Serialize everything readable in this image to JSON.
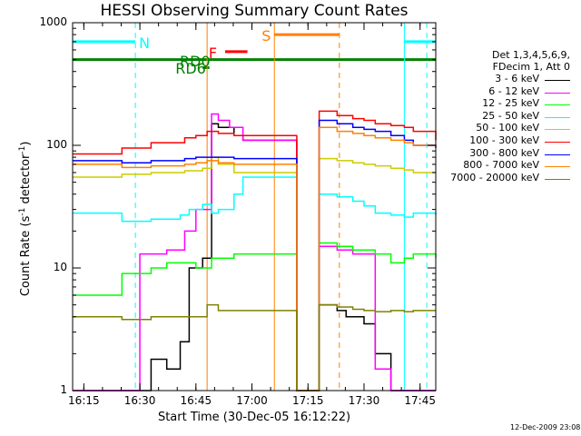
{
  "chart_data": {
    "type": "line",
    "title": "HESSI Observing Summary Count Rates",
    "xlabel": "Start Time (30-Dec-05 16:12:22)",
    "ylabel": "Count Rate (s",
    "ylabel_sup1": "-1",
    "ylabel_mid": " detector",
    "ylabel_sup2": "-1",
    "ylabel_end": ")",
    "x_range_minutes": [
      16.2,
      17.82
    ],
    "ylim": [
      1,
      1000
    ],
    "y_scale": "log",
    "x_ticks": [
      "16:15",
      "16:30",
      "16:45",
      "17:00",
      "17:15",
      "17:30",
      "17:45"
    ],
    "y_ticks": [
      "1",
      "10",
      "100",
      "1000"
    ],
    "info_lines": [
      "Det 1,3,4,5,6,9,",
      "FDecim 1, Att 0"
    ],
    "legend_position": "right",
    "series": [
      {
        "name": "3 - 6 keV",
        "color": "#000000",
        "x": [
          16.2,
          16.32,
          16.4,
          16.5,
          16.55,
          16.62,
          16.68,
          16.72,
          16.78,
          16.82,
          16.85,
          16.92,
          16.96,
          17.2,
          17.3,
          17.38,
          17.42,
          17.5,
          17.55,
          17.62,
          17.68,
          17.72,
          17.82
        ],
        "y": [
          1,
          1,
          1,
          1,
          1.8,
          1.5,
          2.5,
          10,
          12,
          150,
          140,
          120,
          110,
          1,
          5,
          4.5,
          4,
          3.5,
          2,
          1,
          1,
          1,
          1
        ]
      },
      {
        "name": "6 - 12 keV",
        "color": "#ff00ff",
        "x": [
          16.2,
          16.42,
          16.5,
          16.55,
          16.62,
          16.7,
          16.75,
          16.82,
          16.85,
          16.9,
          16.96,
          17.2,
          17.3,
          17.38,
          17.45,
          17.5,
          17.55,
          17.62,
          17.68,
          17.72,
          17.82
        ],
        "y": [
          1,
          1,
          13,
          13,
          14,
          20,
          30,
          180,
          160,
          140,
          110,
          1,
          15,
          14,
          13,
          13,
          1.5,
          1,
          1,
          1,
          1
        ]
      },
      {
        "name": "12 - 25 keV",
        "color": "#00ff00",
        "x": [
          16.2,
          16.3,
          16.42,
          16.5,
          16.55,
          16.62,
          16.7,
          16.75,
          16.82,
          16.85,
          16.92,
          17.2,
          17.3,
          17.38,
          17.45,
          17.5,
          17.55,
          17.62,
          17.68,
          17.72,
          17.82
        ],
        "y": [
          6,
          6,
          9,
          9,
          10,
          11,
          11,
          10,
          12,
          12,
          13,
          1,
          16,
          15,
          14,
          14,
          13,
          11,
          12,
          13,
          12
        ]
      },
      {
        "name": "25 - 50 keV",
        "color": "#00ffff",
        "x": [
          16.2,
          16.3,
          16.42,
          16.5,
          16.55,
          16.62,
          16.68,
          16.72,
          16.78,
          16.82,
          16.85,
          16.92,
          16.96,
          17.2,
          17.3,
          17.38,
          17.45,
          17.5,
          17.55,
          17.62,
          17.68,
          17.72,
          17.82
        ],
        "y": [
          28,
          28,
          24,
          24,
          25,
          25,
          27,
          30,
          33,
          28,
          30,
          40,
          55,
          1,
          40,
          38,
          35,
          32,
          28,
          27,
          26,
          28,
          27
        ]
      },
      {
        "name": "50 - 100 keV",
        "color": "#cccc00",
        "x": [
          16.2,
          16.3,
          16.42,
          16.5,
          16.55,
          16.62,
          16.7,
          16.78,
          16.82,
          16.85,
          16.92,
          17.2,
          17.3,
          17.38,
          17.45,
          17.5,
          17.55,
          17.62,
          17.68,
          17.72,
          17.82
        ],
        "y": [
          55,
          55,
          58,
          58,
          60,
          60,
          62,
          65,
          80,
          70,
          60,
          1,
          78,
          75,
          72,
          70,
          68,
          65,
          63,
          60,
          60
        ]
      },
      {
        "name": "100 - 300 keV",
        "color": "#ff0000",
        "x": [
          16.2,
          16.3,
          16.42,
          16.5,
          16.55,
          16.62,
          16.7,
          16.75,
          16.8,
          16.85,
          16.92,
          17.2,
          17.3,
          17.38,
          17.45,
          17.5,
          17.55,
          17.62,
          17.68,
          17.72,
          17.82
        ],
        "y": [
          85,
          85,
          95,
          95,
          105,
          105,
          115,
          120,
          130,
          125,
          120,
          1,
          190,
          175,
          165,
          160,
          150,
          145,
          140,
          130,
          110
        ]
      },
      {
        "name": "300 - 800 keV",
        "color": "#0000ff",
        "x": [
          16.2,
          16.3,
          16.42,
          16.5,
          16.55,
          16.62,
          16.7,
          16.75,
          16.8,
          16.85,
          16.92,
          17.2,
          17.3,
          17.38,
          17.45,
          17.5,
          17.55,
          17.62,
          17.68,
          17.72,
          17.82
        ],
        "y": [
          75,
          75,
          72,
          72,
          75,
          75,
          78,
          80,
          80,
          80,
          78,
          1,
          160,
          150,
          140,
          135,
          130,
          120,
          110,
          100,
          95
        ]
      },
      {
        "name": "800 - 7000 keV",
        "color": "#ff8000",
        "x": [
          16.2,
          16.3,
          16.42,
          16.5,
          16.55,
          16.62,
          16.7,
          16.75,
          16.8,
          16.85,
          16.92,
          17.2,
          17.3,
          17.38,
          17.45,
          17.5,
          17.55,
          17.62,
          17.68,
          17.72,
          17.82
        ],
        "y": [
          70,
          70,
          66,
          66,
          68,
          68,
          70,
          72,
          75,
          72,
          70,
          1,
          140,
          130,
          125,
          120,
          115,
          110,
          105,
          100,
          95
        ]
      },
      {
        "name": "7000 - 20000 keV",
        "color": "#808000",
        "x": [
          16.2,
          16.3,
          16.42,
          16.5,
          16.55,
          16.62,
          16.7,
          16.75,
          16.8,
          16.85,
          16.92,
          17.2,
          17.3,
          17.38,
          17.45,
          17.5,
          17.55,
          17.62,
          17.68,
          17.72,
          17.82
        ],
        "y": [
          4,
          4,
          3.8,
          3.8,
          4,
          4,
          4,
          4,
          5,
          4.5,
          4.5,
          1,
          5,
          4.8,
          4.6,
          4.5,
          4.4,
          4.5,
          4.4,
          4.5,
          4.5
        ]
      }
    ],
    "flag_bars": [
      {
        "label": "N",
        "color": "#00ffff",
        "y": 700,
        "segments": [
          [
            16.2,
            16.48
          ],
          [
            17.68,
            17.82
          ]
        ]
      },
      {
        "label": "S",
        "color": "#ff8000",
        "y": 800,
        "segments": [
          [
            17.1,
            17.39
          ]
        ]
      },
      {
        "label": "F",
        "color": "#ff0000",
        "y": 580,
        "segments": [
          [
            16.88,
            16.98
          ]
        ]
      },
      {
        "label": "RD0",
        "color": "#008000",
        "y": 500,
        "segments": [
          [
            16.2,
            17.82
          ]
        ]
      },
      {
        "label": "RD6",
        "color": "#008000",
        "y": 430,
        "segments": [
          [
            16.78,
            16.81
          ]
        ]
      }
    ],
    "vlines": [
      {
        "x": 16.48,
        "color": "#00ffff",
        "style": "dashed"
      },
      {
        "x": 16.8,
        "color": "#ff8000",
        "style": "solid"
      },
      {
        "x": 17.1,
        "color": "#ff8000",
        "style": "solid"
      },
      {
        "x": 17.39,
        "color": "#ff8000",
        "style": "dashed"
      },
      {
        "x": 17.68,
        "color": "#00ffff",
        "style": "solid"
      },
      {
        "x": 17.78,
        "color": "#00ffff",
        "style": "dashed"
      },
      {
        "x": 16.2,
        "color": "#00ffff",
        "style": "solid"
      }
    ],
    "grid": false,
    "timestamp": "12-Dec-2009 23:08"
  }
}
